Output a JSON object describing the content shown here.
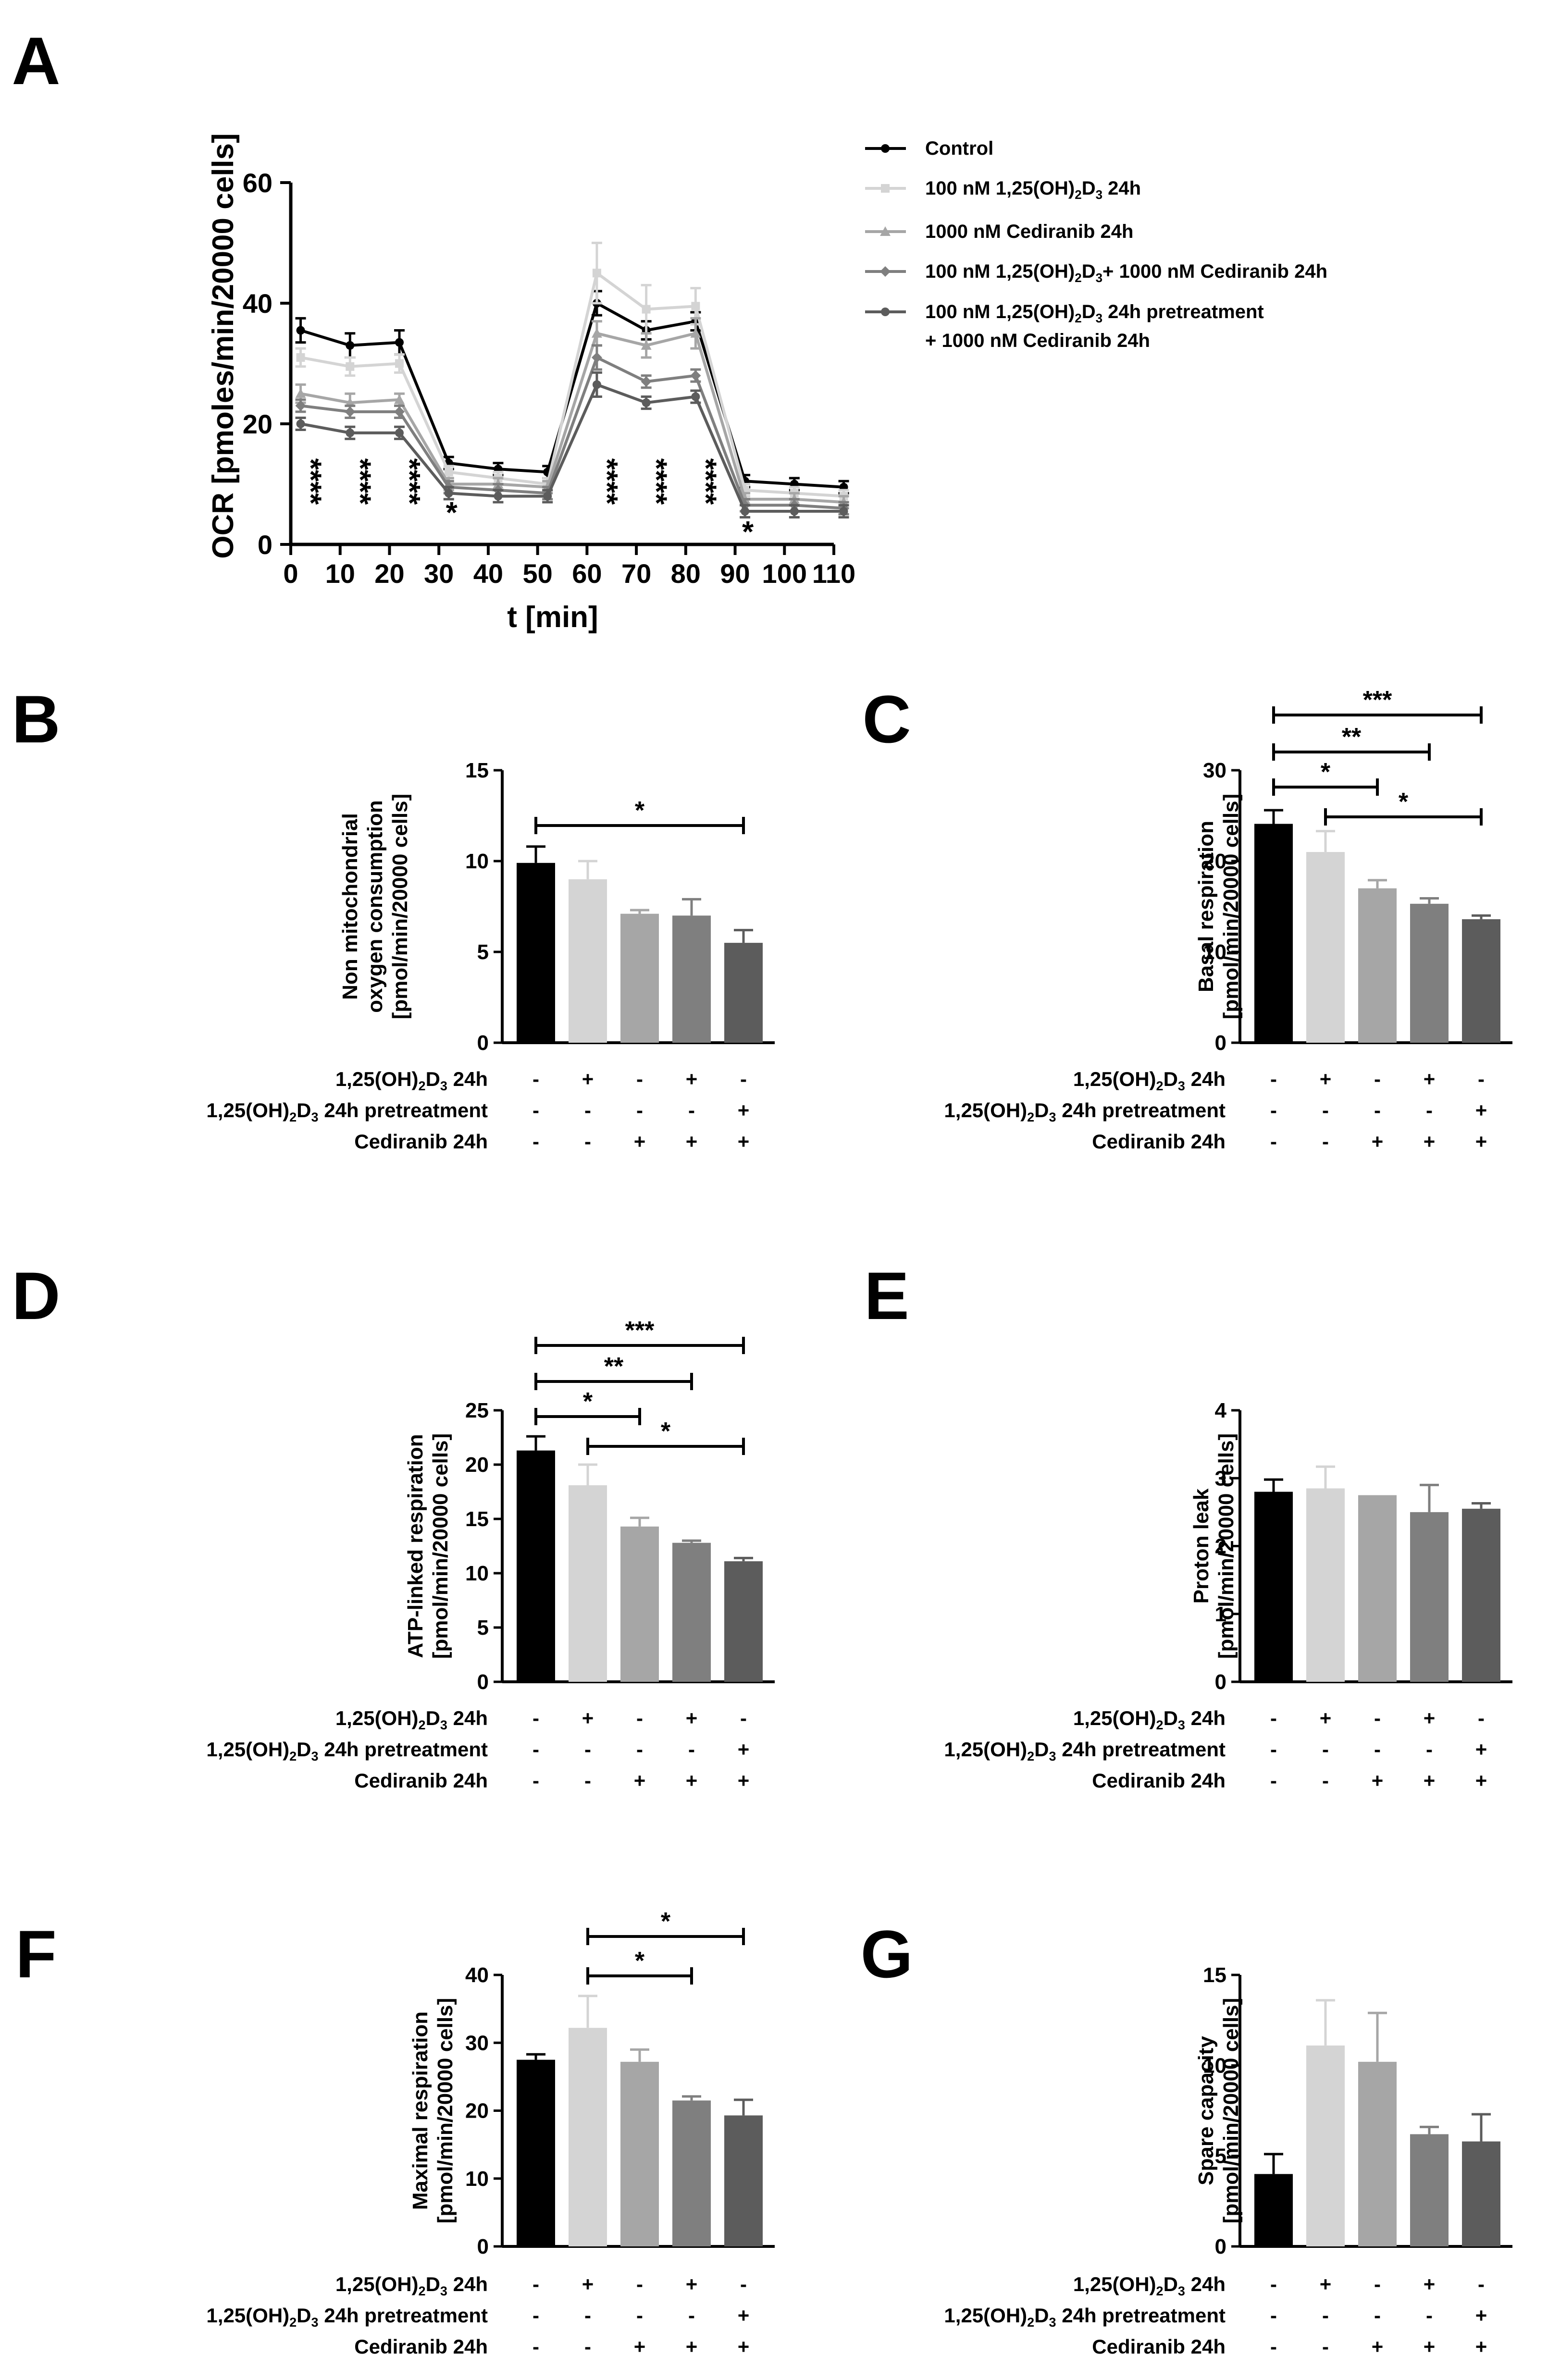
{
  "colors": {
    "control": "#000000",
    "vitd": "#d4d4d4",
    "cediranib": "#a6a6a6",
    "combo": "#7f7f7f",
    "pretreat": "#5c5c5c"
  },
  "chart_data": [
    {
      "panel": "A",
      "type": "line",
      "xlabel": "t [min]",
      "ylabel": "OCR [pmoles/min/20000 cells]",
      "xlim": [
        0,
        110
      ],
      "ylim": [
        0,
        60
      ],
      "xticks": [
        "0",
        "10",
        "20",
        "30",
        "40",
        "50",
        "60",
        "70",
        "80",
        "90",
        "100",
        "110"
      ],
      "yticks": [
        "0",
        "20",
        "40",
        "60"
      ],
      "x": [
        2,
        12,
        22,
        32,
        42,
        52,
        62,
        72,
        82,
        92,
        102,
        112
      ],
      "legend": [
        {
          "text": "Control"
        },
        {
          "text": "100 nM 1,25(OH)",
          "sub": "2",
          "rest": "D",
          "sub2": "3",
          "tail": " 24h"
        },
        {
          "text": "1000 nM Cediranib 24h"
        },
        {
          "text": "100 nM 1,25(OH)",
          "sub": "2",
          "rest": "D",
          "sub2": "3",
          "tail": "+ 1000 nM Cediranib 24h"
        },
        {
          "text": "100 nM 1,25(OH)",
          "sub": "2",
          "rest": "D",
          "sub2": "3",
          "tail": " 24h pretreatment"
        },
        {
          "text": "+ 1000 nM Cediranib 24h"
        }
      ],
      "series": [
        {
          "name": "Control",
          "values": [
            35.5,
            33,
            33.5,
            13.5,
            12.5,
            12,
            40,
            35.5,
            37,
            10.5,
            10,
            9.5
          ],
          "err": [
            2,
            2,
            2,
            1,
            1,
            1,
            2,
            1.5,
            1.5,
            1,
            1,
            1
          ]
        },
        {
          "name": "100 nM 1,25(OH)2D3 24h",
          "values": [
            31,
            29.5,
            30,
            12,
            11,
            10,
            45,
            39,
            39.5,
            9,
            8.5,
            8
          ],
          "err": [
            1.5,
            1.5,
            1.5,
            1,
            1,
            1,
            5,
            4,
            3,
            1,
            1,
            1
          ]
        },
        {
          "name": "1000 nM Cediranib 24h",
          "values": [
            25,
            23.5,
            24,
            10,
            10,
            9.5,
            35,
            33,
            35,
            7.5,
            7.5,
            7
          ],
          "err": [
            1.5,
            1.5,
            1,
            1,
            1,
            1,
            2,
            2,
            2.5,
            1,
            1,
            1
          ]
        },
        {
          "name": "100 nM 1,25(OH)2D3+ 1000 nM Cediranib 24h",
          "values": [
            23,
            22,
            22,
            9.5,
            9,
            8.5,
            31,
            27,
            28,
            6.5,
            6.5,
            6
          ],
          "err": [
            1,
            1,
            1,
            1,
            1,
            1,
            2,
            1,
            1,
            1,
            1,
            1
          ]
        },
        {
          "name": "100 nM 1,25(OH)2D3 24h pretreatment + 1000 nM Cediranib 24h",
          "values": [
            20,
            18.5,
            18.5,
            8.5,
            8,
            8,
            26.5,
            23.5,
            24.5,
            5.5,
            5.5,
            5.5
          ],
          "err": [
            1,
            1,
            1,
            1,
            1,
            1,
            2,
            1,
            1,
            1,
            1,
            1
          ]
        }
      ],
      "annotations": [
        {
          "x": 2,
          "text": "****"
        },
        {
          "x": 12,
          "text": "****"
        },
        {
          "x": 22,
          "text": "****"
        },
        {
          "x": 32,
          "text": "*"
        },
        {
          "x": 62,
          "text": "****"
        },
        {
          "x": 72,
          "text": "****"
        },
        {
          "x": 82,
          "text": "****"
        },
        {
          "x": 92,
          "text": "*"
        }
      ]
    },
    {
      "panel": "B",
      "type": "bar",
      "ylabel_lines": [
        "Non mitochondrial",
        "oxygen consumption",
        "[pmol/min/20000 cells]"
      ],
      "ylim": [
        0,
        15
      ],
      "yticks": [
        "0",
        "5",
        "10",
        "15"
      ],
      "values": [
        9.9,
        9.0,
        7.1,
        7.0,
        5.5
      ],
      "err": [
        0.9,
        1.0,
        0.2,
        0.9,
        0.7
      ],
      "brackets": [
        {
          "from": 0,
          "to": 4,
          "text": "*"
        }
      ]
    },
    {
      "panel": "C",
      "type": "bar",
      "ylabel_lines": [
        "Basal respiration",
        "[pmol/min/20000 cells]"
      ],
      "ylim": [
        0,
        30
      ],
      "yticks": [
        "0",
        "10",
        "20",
        "30"
      ],
      "values": [
        24.1,
        21.0,
        17.0,
        15.3,
        13.6
      ],
      "err": [
        1.5,
        2.3,
        0.9,
        0.6,
        0.4
      ],
      "brackets": [
        {
          "from": 0,
          "to": 4,
          "text": "***"
        },
        {
          "from": 0,
          "to": 3,
          "text": "**"
        },
        {
          "from": 0,
          "to": 2,
          "text": "*"
        },
        {
          "from": 1,
          "to": 4,
          "text": "*"
        }
      ]
    },
    {
      "panel": "D",
      "type": "bar",
      "ylabel_lines": [
        "ATP-linked respiration",
        "[pmol/min/20000 cells]"
      ],
      "ylim": [
        0,
        25
      ],
      "yticks": [
        "0",
        "5",
        "10",
        "15",
        "20",
        "25"
      ],
      "values": [
        21.3,
        18.1,
        14.3,
        12.8,
        11.1
      ],
      "err": [
        1.3,
        1.9,
        0.8,
        0.2,
        0.3
      ],
      "brackets": [
        {
          "from": 0,
          "to": 4,
          "text": "***"
        },
        {
          "from": 0,
          "to": 3,
          "text": "**"
        },
        {
          "from": 0,
          "to": 2,
          "text": "*"
        },
        {
          "from": 1,
          "to": 4,
          "text": "*"
        }
      ]
    },
    {
      "panel": "E",
      "type": "bar",
      "ylabel_lines": [
        "Proton leak",
        "[pmol/min/20000 cells]"
      ],
      "ylim": [
        0,
        4
      ],
      "yticks": [
        "0",
        "1",
        "2",
        "3",
        "4"
      ],
      "values": [
        2.8,
        2.85,
        2.75,
        2.5,
        2.55
      ],
      "err": [
        0.18,
        0.32,
        0.0,
        0.4,
        0.08
      ],
      "brackets": []
    },
    {
      "panel": "F",
      "type": "bar",
      "ylabel_lines": [
        "Maximal respiration",
        "[pmol/min/20000 cells]"
      ],
      "ylim": [
        0,
        40
      ],
      "yticks": [
        "0",
        "10",
        "20",
        "30",
        "40"
      ],
      "values": [
        27.5,
        32.2,
        27.2,
        21.5,
        19.3
      ],
      "err": [
        0.8,
        4.7,
        1.8,
        0.6,
        2.3
      ],
      "brackets": [
        {
          "from": 1,
          "to": 4,
          "text": "*"
        },
        {
          "from": 1,
          "to": 3,
          "text": "*"
        }
      ]
    },
    {
      "panel": "G",
      "type": "bar",
      "ylabel_lines": [
        "Spare capacity",
        "[pmol/min/20000 cells]"
      ],
      "ylim": [
        0,
        15
      ],
      "yticks": [
        "0",
        "5",
        "10",
        "15"
      ],
      "values": [
        4.0,
        11.1,
        10.2,
        6.2,
        5.8
      ],
      "err": [
        1.1,
        2.5,
        2.7,
        0.4,
        1.5
      ],
      "brackets": []
    }
  ],
  "treatment_table": {
    "row1_label": {
      "text": "1,25(OH)",
      "sub": "2",
      "rest": "D",
      "sub2": "3",
      "tail": " 24h"
    },
    "row2_label": {
      "text": "1,25(OH)",
      "sub": "2",
      "rest": "D",
      "sub2": "3",
      "tail": " 24h pretreatment"
    },
    "row3_label": {
      "text": "Cediranib 24h"
    },
    "row1_signs": [
      "-",
      "+",
      "-",
      "+",
      "-"
    ],
    "row2_signs": [
      "-",
      "-",
      "-",
      "-",
      "+"
    ],
    "row3_signs": [
      "-",
      "-",
      "+",
      "+",
      "+"
    ]
  }
}
